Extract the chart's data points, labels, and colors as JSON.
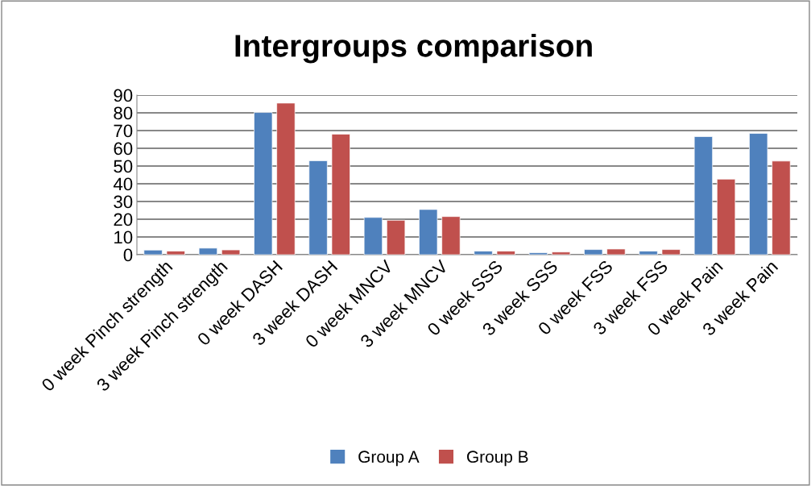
{
  "chart_data": {
    "type": "bar",
    "title": "Intergroups comparison",
    "categories": [
      "0 week Pinch strength",
      "3 week Pinch strength",
      "0 week DASH",
      "3 week DASH",
      "0 week MNCV",
      "3 week MNCV",
      "0 week SSS",
      "3 week SSS",
      "0 week FSS",
      "3 week FSS",
      "0 week Pain",
      "3 week Pain"
    ],
    "series": [
      {
        "name": "Group A",
        "color": "#4f81bd",
        "values": [
          2.6,
          3.7,
          80.2,
          53,
          21,
          25.5,
          2.0,
          1.1,
          2.9,
          2.0,
          66.6,
          68.4
        ]
      },
      {
        "name": "Group B",
        "color": "#c0504d",
        "values": [
          2.0,
          2.7,
          85.5,
          68,
          19.4,
          21.5,
          2.0,
          1.5,
          3.2,
          2.9,
          42.6,
          52.8
        ]
      }
    ],
    "ylim": [
      0,
      90
    ],
    "yticks": [
      0,
      10,
      20,
      30,
      40,
      50,
      60,
      70,
      80,
      90
    ],
    "grid": "y",
    "legend": "bottom"
  }
}
